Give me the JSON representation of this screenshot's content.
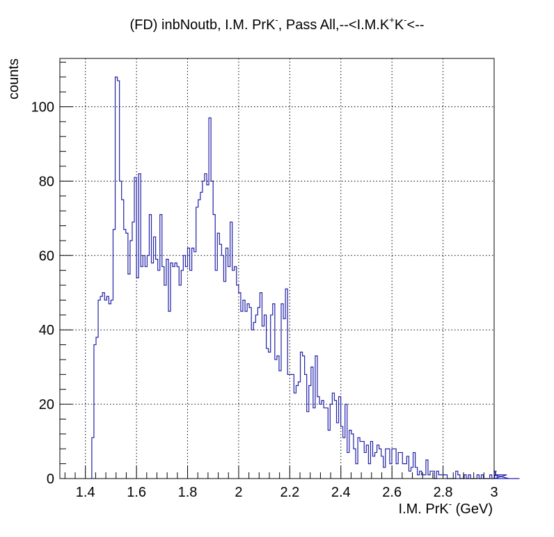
{
  "chart_data": {
    "type": "histogram",
    "title": "(FD) inbNoutb, I.M. PrK^{-}, Pass All,--<I.M.K^{+}K^{-}<--",
    "title_parts": {
      "t1": "(FD) inbNoutb, I.M. PrK",
      "s1": "-",
      "t2": ", Pass All,--<I.M.K",
      "s2": "+",
      "t3": "K",
      "s3": "-",
      "t4": "<--"
    },
    "xlabel": "I.M. PrK^{-} (GeV)",
    "xlabel_parts": {
      "t1": "I.M. PrK",
      "s1": "-",
      "t2": " (GeV)"
    },
    "ylabel": "counts",
    "xlim": [
      1.3,
      3.0
    ],
    "ylim": [
      0,
      113
    ],
    "x_ticks": [
      "1.4",
      "1.6",
      "1.8",
      "2",
      "2.2",
      "2.4",
      "2.6",
      "2.8",
      "3"
    ],
    "y_ticks": [
      "0",
      "20",
      "40",
      "60",
      "80",
      "100"
    ],
    "grid": true,
    "line_color": "#1f1fa8",
    "bin_width": 0.00833,
    "x_start": 1.425,
    "values": [
      11,
      36,
      38,
      48,
      49,
      50,
      48,
      49,
      47,
      48,
      67,
      108,
      107,
      80,
      75,
      67,
      66,
      55,
      64,
      69,
      81,
      54,
      82,
      57,
      60,
      57,
      60,
      71,
      58,
      65,
      59,
      56,
      71,
      57,
      52,
      59,
      45,
      58,
      57,
      58,
      57,
      52,
      56,
      60,
      57,
      62,
      56,
      62,
      61,
      73,
      75,
      77,
      80,
      82,
      79,
      97,
      80,
      71,
      56,
      66,
      63,
      60,
      53,
      62,
      57,
      69,
      56,
      57,
      52,
      50,
      45,
      48,
      45,
      47,
      46,
      40,
      42,
      44,
      46,
      50,
      41,
      44,
      35,
      34,
      44,
      47,
      32,
      33,
      29,
      47,
      43,
      51,
      28,
      28,
      28,
      23,
      25,
      26,
      34,
      33,
      28,
      18,
      25,
      30,
      19,
      33,
      22,
      20,
      21,
      19,
      19,
      13,
      20,
      23,
      21,
      15,
      22,
      14,
      11,
      20,
      7,
      13,
      12,
      8,
      4,
      11,
      10,
      10,
      7,
      9,
      4,
      10,
      6,
      7,
      9,
      8,
      6,
      3,
      8,
      8,
      4,
      8,
      8,
      4,
      7,
      7,
      4,
      4,
      6,
      2,
      3,
      7,
      3,
      1,
      2,
      1,
      1,
      5,
      1,
      2,
      2,
      0,
      2,
      1,
      1,
      1,
      1,
      0,
      0,
      0,
      0,
      2,
      1,
      0,
      0,
      1,
      0,
      1,
      0,
      0,
      0,
      1,
      0,
      1,
      0,
      0,
      0,
      1,
      0,
      0,
      2,
      0,
      0,
      0,
      0,
      1,
      0,
      0,
      0,
      0,
      0,
      0
    ]
  }
}
